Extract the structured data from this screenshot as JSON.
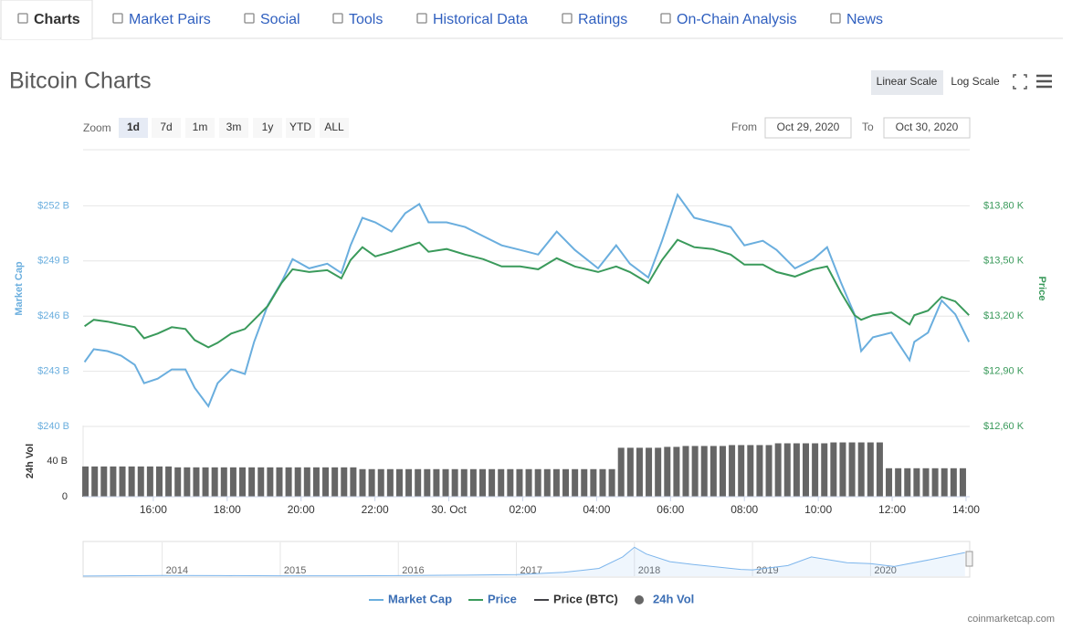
{
  "tabs": [
    "Charts",
    "Market Pairs",
    "Social",
    "Tools",
    "Historical Data",
    "Ratings",
    "On-Chain Analysis",
    "News"
  ],
  "active_tab": 0,
  "header": {
    "title": "Bitcoin Charts",
    "scale_buttons": [
      "Linear Scale",
      "Log Scale"
    ],
    "active_scale": 0
  },
  "zoom": {
    "label": "Zoom",
    "buttons": [
      "1d",
      "7d",
      "1m",
      "3m",
      "1y",
      "YTD",
      "ALL"
    ],
    "active": 0
  },
  "range": {
    "from_label": "From",
    "from": "Oct 29, 2020",
    "to_label": "To",
    "to": "Oct 30, 2020"
  },
  "chart_data": [
    {
      "type": "line",
      "ylabel": "Market Cap",
      "y2label": "Price",
      "x": [
        14.14,
        14.39,
        14.76,
        15.13,
        15.5,
        15.75,
        16.12,
        16.5,
        16.87,
        17.12,
        17.49,
        17.74,
        18.11,
        18.48,
        18.73,
        19.1,
        19.47,
        19.77,
        20.22,
        20.71,
        21.09,
        21.34,
        21.66,
        22.01,
        22.45,
        22.82,
        23.2,
        23.45,
        23.94,
        24.44,
        24.93,
        25.43,
        25.93,
        26.42,
        26.92,
        27.41,
        28.04,
        28.53,
        28.9,
        29.4,
        29.77,
        30.19,
        30.64,
        31.14,
        31.63,
        32.0,
        32.5,
        32.87,
        33.37,
        33.87,
        34.24,
        34.61,
        34.98,
        35.16,
        35.48,
        35.98,
        36.47,
        36.6,
        36.97,
        37.34,
        37.71,
        38.08
      ],
      "series": [
        {
          "name": "Market Cap",
          "color": "#6aaede",
          "values": [
            243.5,
            244.2,
            244.1,
            243.85,
            243.35,
            242.35,
            242.6,
            243.1,
            243.1,
            242.1,
            241.1,
            242.35,
            243.1,
            242.85,
            244.6,
            246.6,
            247.85,
            249.1,
            248.6,
            248.85,
            248.35,
            249.85,
            251.35,
            251.1,
            250.6,
            251.6,
            252.1,
            251.1,
            251.1,
            250.85,
            250.35,
            249.85,
            249.6,
            249.35,
            250.6,
            249.6,
            248.6,
            249.85,
            248.85,
            248.1,
            250.1,
            252.6,
            251.35,
            251.1,
            250.85,
            249.85,
            250.1,
            249.6,
            248.6,
            249.1,
            249.75,
            247.85,
            246.1,
            244.1,
            244.85,
            245.1,
            243.6,
            244.6,
            245.1,
            246.85,
            246.1,
            244.6
          ]
        },
        {
          "name": "Price",
          "color": "#3a9a5b",
          "axis": "y2",
          "values": [
            13145,
            13180,
            13170,
            13155,
            13140,
            13080,
            13105,
            13140,
            13130,
            13070,
            13030,
            13055,
            13105,
            13130,
            13180,
            13255,
            13380,
            13455,
            13440,
            13450,
            13405,
            13505,
            13575,
            13525,
            13550,
            13575,
            13600,
            13550,
            13565,
            13535,
            13510,
            13470,
            13470,
            13455,
            13515,
            13470,
            13440,
            13470,
            13440,
            13380,
            13505,
            13615,
            13575,
            13565,
            13535,
            13480,
            13480,
            13440,
            13415,
            13455,
            13470,
            13330,
            13205,
            13180,
            13205,
            13220,
            13155,
            13205,
            13230,
            13305,
            13280,
            13205
          ]
        }
      ],
      "legend_only": [
        {
          "name": "Price (BTC)",
          "color": "#434348",
          "hidden": true
        }
      ],
      "xlim": [
        14.1,
        38.1
      ],
      "xticks": [
        {
          "value": 16,
          "label": "16:00"
        },
        {
          "value": 18,
          "label": "18:00"
        },
        {
          "value": 20,
          "label": "20:00"
        },
        {
          "value": 22,
          "label": "22:00"
        },
        {
          "value": 24,
          "label": "30. Oct"
        },
        {
          "value": 26,
          "label": "02:00"
        },
        {
          "value": 28,
          "label": "04:00"
        },
        {
          "value": 30,
          "label": "06:00"
        },
        {
          "value": 32,
          "label": "08:00"
        },
        {
          "value": 34,
          "label": "10:00"
        },
        {
          "value": 36,
          "label": "12:00"
        },
        {
          "value": 38,
          "label": "14:00"
        }
      ],
      "ylim": [
        240,
        255
      ],
      "yticks": [
        {
          "value": 240,
          "label": "$240 B"
        },
        {
          "value": 243,
          "label": "$243 B"
        },
        {
          "value": 246,
          "label": "$246 B"
        },
        {
          "value": 249,
          "label": "$249 B"
        },
        {
          "value": 252,
          "label": "$252 B"
        }
      ],
      "y2lim": [
        12600,
        14100
      ],
      "y2ticks": [
        {
          "value": 12600,
          "label": "$12,60 K"
        },
        {
          "value": 12900,
          "label": "$12,90 K"
        },
        {
          "value": 13200,
          "label": "$13,20 K"
        },
        {
          "value": 13500,
          "label": "$13,50 K"
        },
        {
          "value": 13800,
          "label": "$13,80 K"
        }
      ],
      "grid": true
    },
    {
      "type": "bar",
      "name": "24h Vol",
      "ylabel": "24h Vol",
      "color": "#666666",
      "x": [
        14.25,
        14.5,
        14.75,
        15,
        15.25,
        15.5,
        15.75,
        16,
        16.25,
        16.5,
        16.75,
        17,
        17.25,
        17.5,
        17.75,
        18,
        18.25,
        18.5,
        18.75,
        19,
        19.25,
        19.5,
        19.75,
        20,
        20.25,
        20.5,
        20.75,
        21,
        21.25,
        21.5,
        21.75,
        22,
        22.25,
        22.5,
        22.75,
        23,
        23.25,
        23.5,
        23.75,
        24,
        24.25,
        24.5,
        24.75,
        25,
        25.25,
        25.5,
        25.75,
        26,
        26.25,
        26.5,
        26.75,
        27,
        27.25,
        27.5,
        27.75,
        28,
        28.25,
        28.5,
        28.75,
        29,
        29.25,
        29.5,
        29.75,
        30,
        30.25,
        30.5,
        30.75,
        31,
        31.25,
        31.5,
        31.75,
        32,
        32.25,
        32.5,
        32.75,
        33,
        33.25,
        33.5,
        33.75,
        34,
        34.25,
        34.5,
        34.75,
        35,
        35.25,
        35.5,
        35.75,
        36,
        36.25,
        36.5,
        36.75,
        37,
        37.25,
        37.5,
        37.75,
        38
      ],
      "values": [
        34,
        34,
        34,
        34,
        34,
        34,
        34,
        34,
        34,
        34,
        33,
        33,
        33,
        33,
        33,
        33,
        33,
        33,
        33,
        33,
        33,
        33,
        33,
        33,
        33,
        33,
        33,
        33,
        33,
        33,
        31,
        31,
        31,
        31,
        31,
        31,
        31,
        31,
        31,
        31,
        31,
        31,
        31,
        31,
        31,
        31,
        31,
        31,
        31,
        31,
        31,
        31,
        31,
        31,
        31,
        31,
        31,
        31,
        55,
        55,
        55,
        55,
        55,
        56,
        56,
        57,
        57,
        57,
        57,
        57,
        58,
        58,
        58,
        58,
        58,
        60,
        60,
        60,
        60,
        60,
        60,
        61,
        61,
        61,
        61,
        61,
        61,
        32,
        32,
        32,
        32,
        32,
        32,
        32,
        32,
        32
      ],
      "xlim": [
        14.1,
        38.1
      ],
      "ylim": [
        0,
        80
      ],
      "yticks": [
        0,
        {
          "value": 40,
          "label": "40 B"
        }
      ]
    },
    {
      "type": "area",
      "color": "#7cb5ec",
      "x": [
        2013.33,
        2014,
        2014.5,
        2015,
        2015.5,
        2016,
        2016.5,
        2017,
        2017.4,
        2017.7,
        2017.9,
        2018.0,
        2018.1,
        2018.3,
        2018.5,
        2018.9,
        2019.0,
        2019.3,
        2019.5,
        2019.8,
        2020.0,
        2020.2,
        2020.5,
        2020.8
      ],
      "values": [
        1,
        8,
        6,
        4,
        4,
        6,
        10,
        16,
        40,
        80,
        200,
        300,
        230,
        150,
        120,
        70,
        65,
        110,
        200,
        140,
        130,
        100,
        170,
        245
      ],
      "xlim": [
        2013.33,
        2020.84
      ],
      "ylim": [
        0,
        350
      ],
      "xticks": [
        2014,
        2015,
        2016,
        2017,
        2018,
        2019,
        2020
      ]
    }
  ],
  "credit": "coinmarketcap.com"
}
